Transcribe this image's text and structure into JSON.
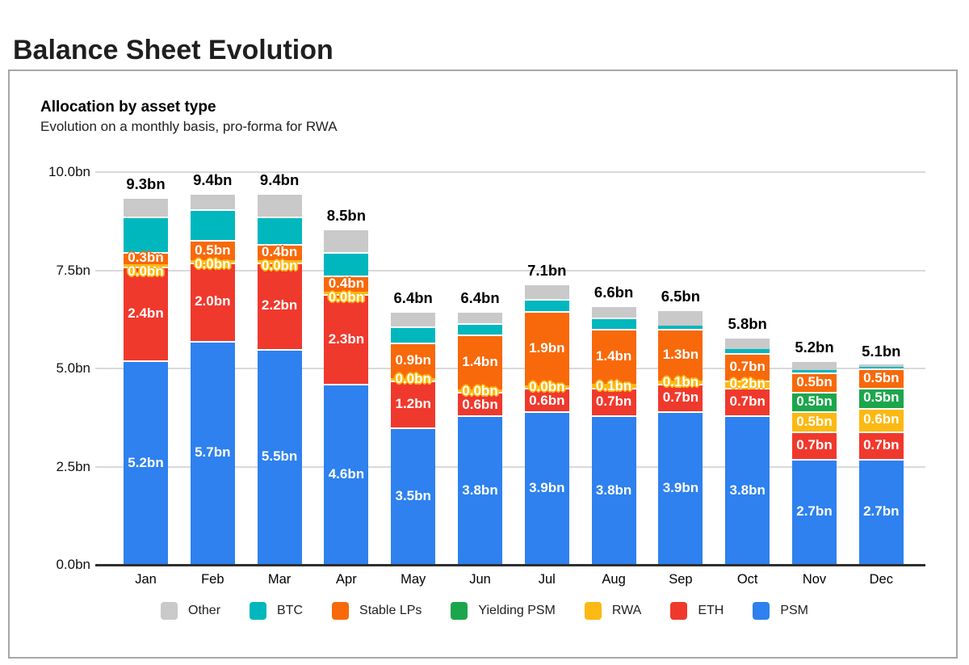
{
  "page": {
    "title": "Balance Sheet Evolution"
  },
  "card": {
    "heading": "Allocation by asset type",
    "subtitle": "Evolution on a monthly basis, pro-forma for RWA"
  },
  "chart_data": {
    "type": "bar",
    "stacked": true,
    "unit": "bn",
    "title": "Allocation by asset type",
    "subtitle": "Evolution on a monthly basis, pro-forma for RWA",
    "categories": [
      "Jan",
      "Feb",
      "Mar",
      "Apr",
      "May",
      "Jun",
      "Jul",
      "Aug",
      "Sep",
      "Oct",
      "Nov",
      "Dec"
    ],
    "totals": [
      "9.3bn",
      "9.4bn",
      "9.4bn",
      "8.5bn",
      "6.4bn",
      "6.4bn",
      "7.1bn",
      "6.6bn",
      "6.5bn",
      "5.8bn",
      "5.2bn",
      "5.1bn"
    ],
    "y_axis": {
      "ticks": [
        "0.0bn",
        "2.5bn",
        "5.0bn",
        "7.5bn",
        "10.0bn"
      ],
      "min": 0,
      "max": 10,
      "grid": true
    },
    "legend": [
      "Other",
      "BTC",
      "Stable LPs",
      "Yielding PSM",
      "RWA",
      "ETH",
      "PSM"
    ],
    "series": [
      {
        "name": "PSM",
        "color": "#2E81EE",
        "values": [
          5.2,
          5.7,
          5.5,
          4.6,
          3.5,
          3.8,
          3.9,
          3.8,
          3.9,
          3.8,
          2.7,
          2.7
        ],
        "labels": [
          "5.2bn",
          "5.7bn",
          "5.5bn",
          "4.6bn",
          "3.5bn",
          "3.8bn",
          "3.9bn",
          "3.8bn",
          "3.9bn",
          "3.8bn",
          "2.7bn",
          "2.7bn"
        ]
      },
      {
        "name": "ETH",
        "color": "#F0392D",
        "values": [
          2.4,
          2.0,
          2.2,
          2.3,
          1.2,
          0.6,
          0.6,
          0.7,
          0.7,
          0.7,
          0.7,
          0.7
        ],
        "labels": [
          "2.4bn",
          "2.0bn",
          "2.2bn",
          "2.3bn",
          "1.2bn",
          "0.6bn",
          "0.6bn",
          "0.7bn",
          "0.7bn",
          "0.7bn",
          "0.7bn",
          "0.7bn"
        ]
      },
      {
        "name": "RWA",
        "color": "#FBB913",
        "values": [
          0.0,
          0.0,
          0.0,
          0.0,
          0.0,
          0.0,
          0.0,
          0.1,
          0.1,
          0.2,
          0.5,
          0.6
        ],
        "labels": [
          "0.0bn",
          "0.0bn",
          "0.0bn",
          "0.0bn",
          "0.0bn",
          "0.0bn",
          "0.0bn",
          "0.1bn",
          "0.1bn",
          "0.2bn",
          "0.5bn",
          "0.6bn"
        ]
      },
      {
        "name": "Yielding PSM",
        "color": "#1CA64C",
        "values": [
          0,
          0,
          0,
          0,
          0,
          0,
          0,
          0,
          0,
          0,
          0.5,
          0.5
        ],
        "labels": [
          null,
          null,
          null,
          null,
          null,
          null,
          null,
          null,
          null,
          null,
          "0.5bn",
          "0.5bn"
        ]
      },
      {
        "name": "Stable LPs",
        "color": "#F8690B",
        "values": [
          0.3,
          0.5,
          0.4,
          0.4,
          0.9,
          1.4,
          1.9,
          1.4,
          1.3,
          0.7,
          0.5,
          0.5
        ],
        "labels": [
          "0.3bn",
          "0.5bn",
          "0.4bn",
          "0.4bn",
          "0.9bn",
          "1.4bn",
          "1.9bn",
          "1.4bn",
          "1.3bn",
          "0.7bn",
          "0.5bn",
          "0.5bn"
        ]
      },
      {
        "name": "BTC",
        "color": "#00B7BE",
        "values": [
          0.9,
          0.8,
          0.7,
          0.6,
          0.4,
          0.3,
          0.3,
          0.3,
          0.1,
          0.1,
          0.05,
          0.05
        ],
        "labels": null
      },
      {
        "name": "Other",
        "color": "#C9C9C9",
        "values": [
          0.5,
          0.4,
          0.6,
          0.6,
          0.4,
          0.3,
          0.4,
          0.3,
          0.4,
          0.3,
          0.25,
          0.05
        ],
        "labels": null
      }
    ]
  }
}
